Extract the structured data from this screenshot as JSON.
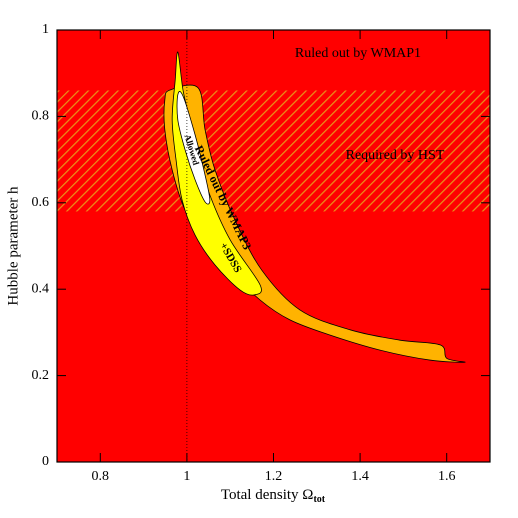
{
  "chart_data": {
    "type": "contour",
    "xlabel": {
      "text": "Total density Ω",
      "subscript": "tot"
    },
    "ylabel": "Hubble parameter h",
    "xlim": [
      0.7,
      1.7
    ],
    "ylim": [
      0,
      1
    ],
    "xticks": [
      0.8,
      1,
      1.2,
      1.4,
      1.6
    ],
    "yticks": [
      0,
      0.2,
      0.4,
      0.6,
      0.8,
      1
    ],
    "background": {
      "name": "Ruled out by WMAP1",
      "color": "#ff0000"
    },
    "band": {
      "name": "Required by HST",
      "color": "#e8901a",
      "y": [
        0.58,
        0.86
      ]
    },
    "reference_x": 1,
    "series": [
      {
        "name": "Ruled out by WMAP3",
        "color": "#ffb300",
        "x": [
          0.961,
          1.026,
          1.042,
          1.065,
          1.111,
          1.173,
          1.261,
          1.377,
          1.492,
          1.585,
          1.6,
          1.642,
          1.561,
          1.446,
          1.33,
          1.238,
          1.169,
          1.1,
          1.042,
          0.996,
          0.966,
          0.949,
          0.949
        ],
        "y": [
          0.861,
          0.866,
          0.769,
          0.676,
          0.56,
          0.444,
          0.352,
          0.306,
          0.282,
          0.271,
          0.24,
          0.231,
          0.236,
          0.259,
          0.294,
          0.329,
          0.375,
          0.444,
          0.514,
          0.583,
          0.676,
          0.769,
          0.838
        ]
      },
      {
        "name": "+SDSS",
        "color": "#ffff00",
        "x": [
          0.979,
          0.991,
          1.007,
          1.03,
          1.053,
          1.1,
          1.169,
          1.157,
          1.123,
          1.065,
          1.019,
          0.989,
          0.975,
          0.966,
          0.973
        ],
        "y": [
          0.949,
          0.861,
          0.792,
          0.699,
          0.618,
          0.514,
          0.41,
          0.387,
          0.398,
          0.456,
          0.525,
          0.606,
          0.699,
          0.792,
          0.884
        ]
      },
      {
        "name": "Allowed",
        "color": "#ffffff",
        "x": [
          0.979,
          0.991,
          1.019,
          1.042,
          1.053,
          1.042,
          1.019,
          0.996,
          0.979
        ],
        "y": [
          0.85,
          0.847,
          0.757,
          0.664,
          0.606,
          0.602,
          0.653,
          0.722,
          0.792
        ]
      }
    ]
  }
}
